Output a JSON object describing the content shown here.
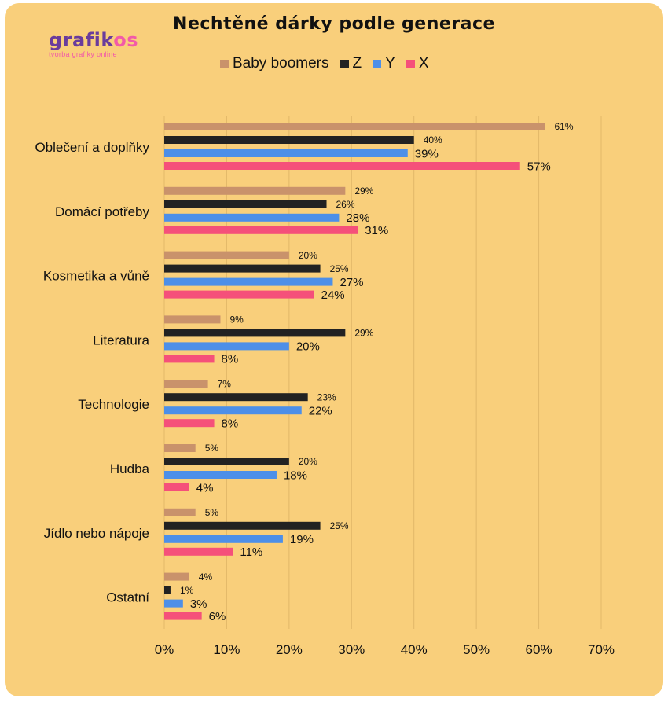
{
  "logo": {
    "text_a": "grafik",
    "text_b": "os",
    "tagline": "tvorba grafiky online"
  },
  "chart_data": {
    "type": "bar",
    "orientation": "horizontal",
    "title": "Nechtěné dárky podle generace",
    "categories": [
      "Oblečení a doplňky",
      "Domácí potřeby",
      "Kosmetika a vůně",
      "Literatura",
      "Technologie",
      "Hudba",
      "Jídlo nebo nápoje",
      "Ostatní"
    ],
    "series": [
      {
        "name": "Baby boomers",
        "color": "#c9926b",
        "values": [
          61,
          29,
          20,
          9,
          7,
          5,
          5,
          4
        ]
      },
      {
        "name": "Z",
        "color": "#222222",
        "values": [
          40,
          26,
          25,
          29,
          23,
          20,
          25,
          1
        ]
      },
      {
        "name": "Y",
        "color": "#4d8fe8",
        "values": [
          39,
          28,
          27,
          20,
          22,
          18,
          19,
          3
        ]
      },
      {
        "name": "X",
        "color": "#f5507a",
        "values": [
          57,
          31,
          24,
          8,
          8,
          4,
          11,
          6
        ]
      }
    ],
    "xlim": [
      0,
      70
    ],
    "xticks": [
      "0%",
      "10%",
      "20%",
      "30%",
      "40%",
      "50%",
      "60%",
      "70%"
    ],
    "grid": true,
    "legend_placement": "top",
    "value_suffix": "%"
  }
}
